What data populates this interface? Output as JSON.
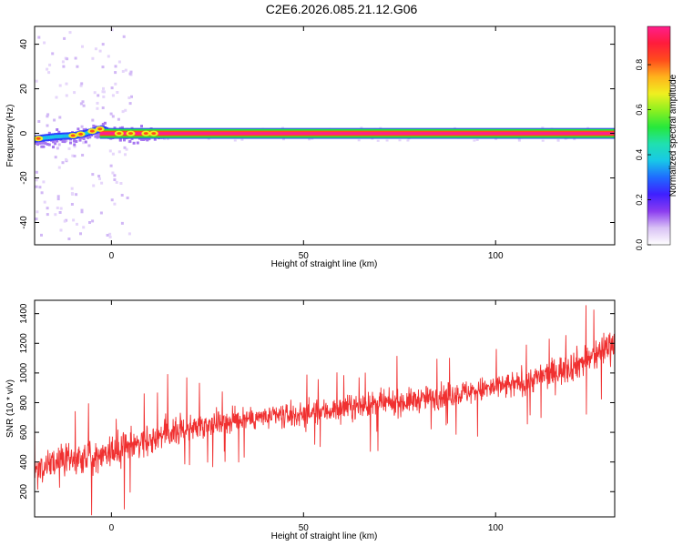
{
  "title": "C2E6.2026.085.21.12.G06",
  "chart_data": [
    {
      "type": "heatmap",
      "xlabel": "Height of straight line (km)",
      "ylabel": "Frequency (Hz)",
      "xlim": [
        -20,
        131
      ],
      "ylim": [
        -50,
        48
      ],
      "x_ticks": [
        0,
        50,
        100
      ],
      "y_ticks": [
        -40,
        -20,
        0,
        20,
        40
      ],
      "grid": false,
      "line_frequency_hz": 0,
      "line_band_hz": [
        -2,
        2
      ],
      "line_start_km": -3,
      "line_end_km": 131,
      "ridge_profile": {
        "x": [
          -20,
          -15,
          -10,
          -7,
          -5,
          -3,
          -2,
          0,
          5,
          10,
          131
        ],
        "y": [
          -2.5,
          -1.5,
          -1,
          0,
          1,
          2,
          1.5,
          0,
          0,
          0,
          0
        ]
      },
      "hotspots_km": [
        -19,
        -10,
        -8,
        -5,
        -3,
        2,
        5,
        9,
        11
      ],
      "colorbar": {
        "label": "Normalized spectral amplitude",
        "ticks": [
          0.0,
          0.2,
          0.4,
          0.6,
          0.8
        ],
        "range": [
          0,
          0.97
        ],
        "colors": [
          "#ffffff",
          "#d9c2f5",
          "#8b3cf0",
          "#3f1fff",
          "#1f6bff",
          "#18c8e8",
          "#20e0b0",
          "#26e83c",
          "#8cf020",
          "#f0f020",
          "#ffb21c",
          "#ff4c1c",
          "#ff1c3c",
          "#ff1e8c"
        ]
      }
    },
    {
      "type": "line",
      "xlabel": "Height of straight line (km)",
      "ylabel": "SNR (10 * v/v)",
      "xlim": [
        -20,
        131
      ],
      "ylim": [
        30,
        1490
      ],
      "x_ticks": [
        0,
        50,
        100
      ],
      "y_ticks": [
        200,
        400,
        600,
        800,
        1000,
        1200,
        1400
      ],
      "grid": false,
      "color": "#f03030",
      "x": [
        -20,
        -15,
        -10,
        -5,
        0,
        5,
        10,
        15,
        20,
        25,
        30,
        35,
        40,
        45,
        50,
        55,
        60,
        65,
        70,
        75,
        80,
        85,
        90,
        95,
        100,
        105,
        110,
        115,
        120,
        125,
        130
      ],
      "values": [
        350,
        390,
        420,
        440,
        470,
        520,
        560,
        600,
        630,
        660,
        670,
        690,
        700,
        710,
        720,
        740,
        760,
        780,
        790,
        800,
        820,
        840,
        860,
        880,
        900,
        920,
        960,
        1000,
        1050,
        1100,
        1200
      ],
      "spread": [
        120,
        130,
        140,
        140,
        140,
        150,
        150,
        130,
        120,
        110,
        110,
        110,
        110,
        110,
        110,
        110,
        110,
        110,
        110,
        110,
        110,
        110,
        110,
        110,
        120,
        120,
        120,
        130,
        140,
        150,
        160
      ]
    }
  ]
}
